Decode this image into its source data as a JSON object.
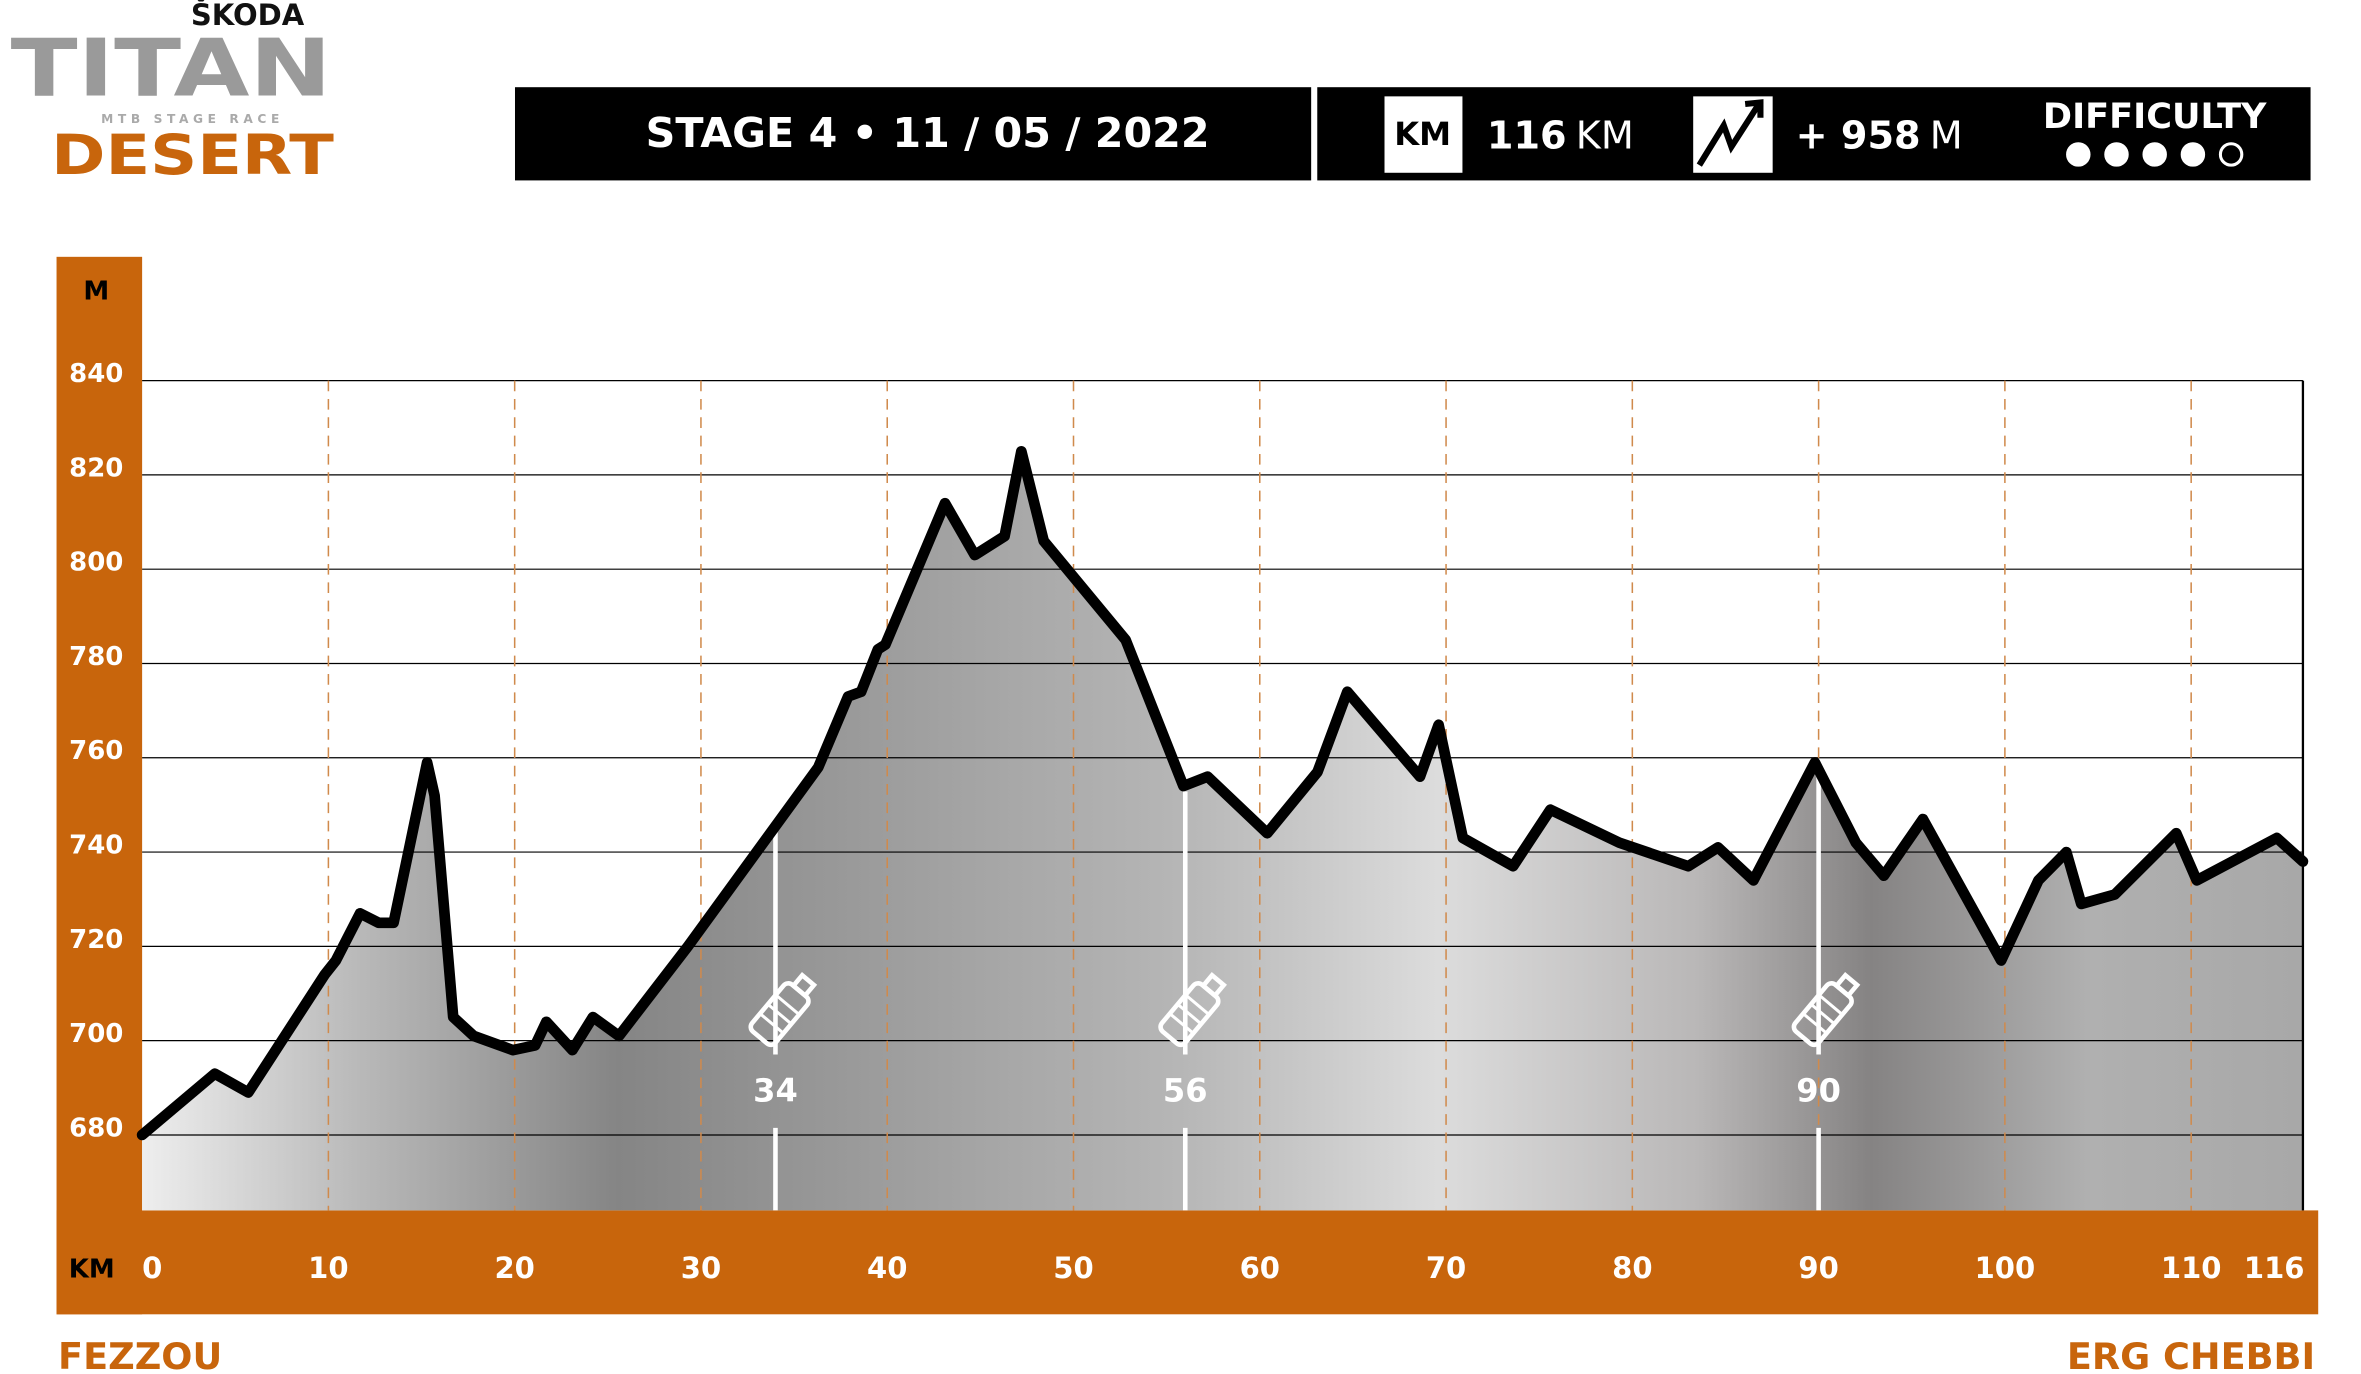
{
  "header": {
    "brand": "ŠKODA",
    "logo": "TITAN",
    "tagline": "MTB STAGE RACE",
    "event": "DESERT",
    "stage": "STAGE 4 • 11  / 05 / 2022",
    "km_icon": "KM",
    "distance": "116",
    "distance_unit": "KM",
    "elevation_gain": "+ 958",
    "elevation_unit": "M",
    "difficulty_label": "DIFFICULTY",
    "difficulty": 4,
    "difficulty_scale": 5
  },
  "chart_data": {
    "type": "area",
    "y_label": "M",
    "x_label": "KM",
    "start": "FEZZOU",
    "finish": "ERG CHEBBI",
    "x": [
      0,
      3.9,
      5.7,
      9.8,
      10.4,
      11.7,
      12.7,
      13.5,
      15.3,
      15.7,
      16.7,
      17.8,
      19.9,
      21.1,
      21.7,
      23.1,
      24.2,
      25.6,
      29.3,
      36.3,
      37.9,
      38.6,
      39.5,
      39.9,
      43.1,
      44.7,
      46.3,
      47.2,
      48.4,
      52.8,
      55.9,
      57.2,
      60.4,
      63.1,
      64.7,
      68.6,
      69.6,
      70.9,
      73.6,
      75.6,
      79.3,
      83.0,
      84.6,
      86.5,
      89.8,
      92.0,
      93.5,
      95.6,
      99.8,
      101.8,
      103.3,
      104.1,
      105.9,
      109.2,
      110.3,
      114.6,
      116
    ],
    "values": [
      680,
      693,
      689,
      714,
      717,
      727,
      725,
      725,
      759,
      752,
      705,
      701,
      698,
      699,
      704,
      698,
      705,
      701,
      720,
      758,
      773,
      774,
      783,
      784,
      814,
      803,
      807,
      825,
      806,
      785,
      754,
      756,
      744,
      757,
      774,
      756,
      767,
      743,
      737,
      749,
      742,
      737,
      741,
      734,
      759,
      742,
      735,
      747,
      717,
      734,
      740,
      729,
      731,
      744,
      734,
      743,
      738
    ],
    "color": "#000000",
    "water_stations": [
      34,
      56,
      90
    ],
    "xlim": [
      0,
      116
    ],
    "xticks": [
      0,
      10,
      20,
      30,
      40,
      50,
      60,
      70,
      80,
      90,
      100,
      110,
      116
    ],
    "ylim": [
      664,
      840
    ],
    "yticks": [
      680,
      700,
      720,
      740,
      760,
      780,
      800,
      820,
      840
    ],
    "grid": true
  }
}
